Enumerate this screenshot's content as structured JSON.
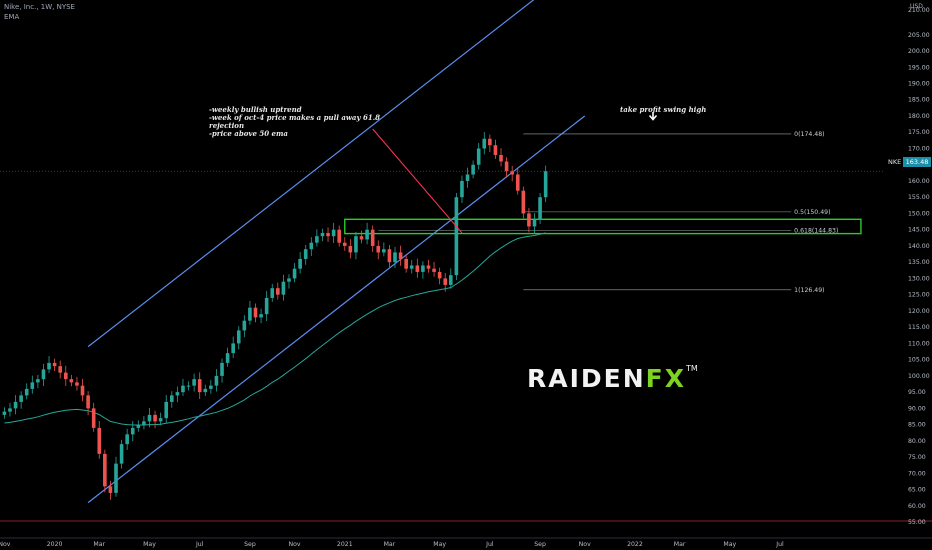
{
  "header": {
    "symbol_line": "Nike, Inc., 1W, NYSE",
    "indicator": "EMA"
  },
  "price_axis": {
    "currency": "USD",
    "top_label": "210.00",
    "current_label": "163.48",
    "ticker_label": "NKE"
  },
  "notes": {
    "analysis": [
      "-weekly bullish uptrend",
      "-week of oct-4 price makes a pull away 61.8",
      "rejection",
      "-price above 50 ema"
    ],
    "target": "take profit swing high"
  },
  "logo": {
    "brand_a": "RAIDEN",
    "brand_b": "FX",
    "tm": "TM"
  },
  "colors": {
    "bg": "#000000",
    "up": "#26a69a",
    "down": "#ef5350",
    "channel": "#5b8def",
    "ema": "#26a69a",
    "zone": "#29cc29",
    "fib": "#9aa3ad",
    "trend": "#ff3355"
  },
  "chart_data": {
    "type": "candlestick",
    "title": "Nike, Inc., 1W, NYSE",
    "y_ticks": [
      55,
      60,
      65,
      70,
      75,
      80,
      85,
      90,
      95,
      100,
      105,
      110,
      115,
      120,
      125,
      130,
      135,
      140,
      145,
      150,
      155,
      160,
      165,
      170,
      175,
      180,
      185,
      190,
      195,
      200,
      205
    ],
    "ylim": [
      52,
      212
    ],
    "x_tick_labels": [
      [
        "Nov",
        0
      ],
      [
        "2020",
        9
      ],
      [
        "Mar",
        17
      ],
      [
        "May",
        26
      ],
      [
        "Jul",
        35
      ],
      [
        "Sep",
        44
      ],
      [
        "Nov",
        52
      ],
      [
        "2021",
        61
      ],
      [
        "Mar",
        69
      ],
      [
        "May",
        78
      ],
      [
        "Jul",
        87
      ],
      [
        "Sep",
        96
      ],
      [
        "Nov",
        104
      ],
      [
        "2022",
        113
      ],
      [
        "Mar",
        121
      ],
      [
        "May",
        130
      ],
      [
        "Jul",
        139
      ]
    ],
    "close": [
      89,
      90,
      92,
      94,
      96,
      98,
      99,
      102,
      104,
      103,
      101,
      99,
      98,
      97,
      94,
      90,
      84,
      76,
      66,
      64,
      73,
      79,
      82,
      84,
      85,
      86,
      88,
      86,
      87,
      92,
      94,
      95,
      97,
      97,
      99,
      95,
      96,
      97,
      100,
      104,
      107,
      110,
      114,
      117,
      121,
      118,
      119,
      124,
      127,
      125,
      129,
      130,
      133,
      136,
      139,
      141,
      143,
      144,
      143,
      145,
      141,
      140,
      138,
      143,
      142,
      145,
      140,
      138,
      139,
      135,
      138,
      136,
      133,
      134,
      132,
      134,
      133,
      132,
      130,
      128,
      131,
      155,
      160,
      162,
      165,
      170,
      173,
      171,
      168,
      166,
      163,
      162,
      157,
      150,
      146,
      148,
      155,
      163
    ],
    "ema_50": [
      85.5,
      85.7,
      86,
      86.3,
      86.7,
      87,
      87.4,
      87.9,
      88.4,
      88.8,
      89.1,
      89.4,
      89.6,
      89.7,
      89.5,
      89.3,
      88.8,
      88.1,
      87,
      86,
      85.6,
      85.2,
      85,
      84.9,
      84.9,
      84.9,
      85,
      85,
      85.1,
      85.4,
      85.7,
      86,
      86.4,
      86.8,
      87.3,
      87.6,
      88,
      88.4,
      88.8,
      89.4,
      90,
      90.8,
      91.7,
      92.6,
      93.8,
      94.8,
      95.7,
      96.8,
      98,
      99,
      100.2,
      101.5,
      102.7,
      104,
      105.3,
      106.7,
      108.1,
      109.4,
      110.7,
      112,
      113.3,
      114.5,
      115.6,
      116.8,
      117.9,
      119,
      120,
      121,
      121.8,
      122.5,
      123.2,
      123.8,
      124.2,
      124.7,
      125.1,
      125.5,
      125.9,
      126.2,
      126.5,
      126.8,
      127.2,
      128.3,
      129.5,
      130.8,
      132.2,
      133.7,
      135.3,
      136.9,
      138.2,
      139.4,
      140.5,
      141.5,
      142.3,
      142.7,
      143,
      143.2,
      143.6,
      144
    ]
  },
  "levels": [
    {
      "label": "0(174.48)",
      "value": 174.48
    },
    {
      "label": "0.5(150.49)",
      "value": 150.49
    },
    {
      "label": "0.618(144.83)",
      "value": 144.83
    },
    {
      "label": "1(126.49)",
      "value": 126.49
    }
  ],
  "support_zone": {
    "low": 143.8,
    "high": 148.2
  },
  "channel": {
    "upper": [
      [
        15,
        109
      ],
      [
        104,
        228
      ]
    ],
    "lower": [
      [
        15,
        61
      ],
      [
        104,
        180
      ]
    ]
  },
  "trend_line": [
    [
      66,
      176
    ],
    [
      82,
      144
    ]
  ],
  "last_index": 97
}
